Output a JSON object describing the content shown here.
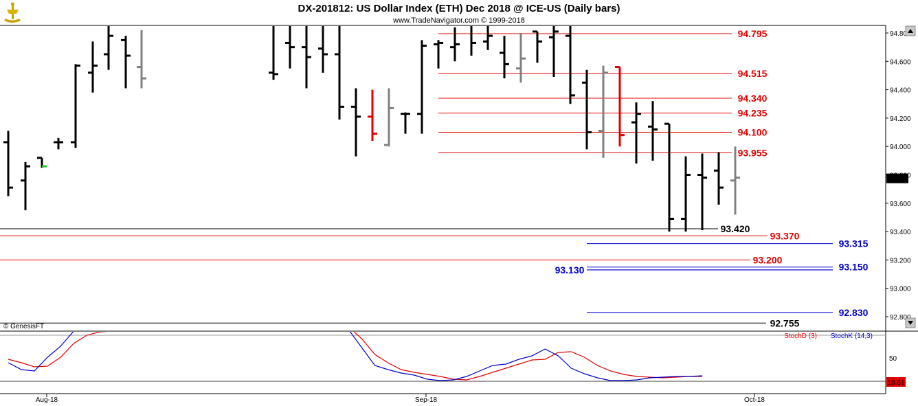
{
  "header": {
    "title": "DX-201812:  US Dollar Index (ETH) Dec 2018 @ ICE-US  (Daily bars)",
    "subtitle": "www.TradeNavigator.com © 1999-2018",
    "logo_icon": "ship-anchor-icon"
  },
  "watermark": "© GenesisFT",
  "colors": {
    "up_tick": "#22cc22",
    "gray_bar": "#808080",
    "red_bar": "#e00000",
    "red_level": "#e00000",
    "blue_level": "#0000cc",
    "black_level": "#000000",
    "stoch_d": "#e00000",
    "stoch_k": "#0000cc"
  },
  "chart_data": [
    {
      "type": "ohlc",
      "name": "price",
      "ylim": [
        92.7,
        94.95
      ],
      "yticks": [
        "94.800",
        "94.600",
        "94.400",
        "94.200",
        "94.000",
        "93.800",
        "93.600",
        "93.400",
        "93.200",
        "93.000",
        "92.800"
      ],
      "last_price": "93.775",
      "xlabels": [
        "Aug-18",
        "Sep-18",
        "Oct-18"
      ],
      "bars": [
        {
          "h": 94.11,
          "l": 93.65,
          "o": 94.03,
          "c": 93.71,
          "col": "black"
        },
        {
          "h": 93.89,
          "l": 93.55,
          "o": 93.76,
          "c": 93.86,
          "col": "black"
        },
        {
          "h": 93.92,
          "l": 93.85,
          "o": 93.92,
          "c": 93.86,
          "col": "green"
        },
        {
          "h": 94.06,
          "l": 93.98,
          "o": 94.03,
          "c": 94.03,
          "col": "black"
        },
        {
          "h": 94.58,
          "l": 93.99,
          "o": 94.03,
          "c": 94.57,
          "col": "black"
        },
        {
          "h": 94.74,
          "l": 94.38,
          "o": 94.52,
          "c": 94.57,
          "col": "black"
        },
        {
          "h": 94.94,
          "l": 94.54,
          "o": 94.65,
          "c": 94.78,
          "col": "black"
        },
        {
          "h": 94.78,
          "l": 94.41,
          "o": 94.75,
          "c": 94.64,
          "col": "black"
        },
        {
          "h": 94.82,
          "l": 94.41,
          "o": 94.56,
          "c": 94.48,
          "col": "gray"
        },
        {
          "h": 94.99,
          "l": 94.47,
          "o": 94.52,
          "c": 94.51,
          "col": "black"
        },
        {
          "h": 94.94,
          "l": 94.55,
          "o": 94.73,
          "c": 94.7,
          "col": "black"
        },
        {
          "h": 94.94,
          "l": 94.41,
          "o": 94.7,
          "c": 94.63,
          "col": "black"
        },
        {
          "h": 94.94,
          "l": 94.52,
          "o": 94.69,
          "c": 94.65,
          "col": "black"
        },
        {
          "h": 94.94,
          "l": 94.19,
          "o": 94.65,
          "c": 94.28,
          "col": "black"
        },
        {
          "h": 94.41,
          "l": 93.93,
          "o": 94.28,
          "c": 94.21,
          "col": "black"
        },
        {
          "h": 94.4,
          "l": 94.04,
          "o": 94.21,
          "c": 94.09,
          "col": "red"
        },
        {
          "h": 94.41,
          "l": 94.0,
          "o": 94.01,
          "c": 94.27,
          "col": "gray"
        },
        {
          "h": 94.24,
          "l": 94.09,
          "o": 94.23,
          "c": 94.23,
          "col": "black"
        },
        {
          "h": 94.75,
          "l": 94.09,
          "o": 94.23,
          "c": 94.71,
          "col": "black"
        },
        {
          "h": 94.75,
          "l": 94.55,
          "o": 94.72,
          "c": 94.73,
          "col": "black"
        },
        {
          "h": 94.84,
          "l": 94.6,
          "o": 94.7,
          "c": 94.72,
          "col": "black"
        },
        {
          "h": 94.93,
          "l": 94.64,
          "o": 94.86,
          "c": 94.73,
          "col": "black"
        },
        {
          "h": 94.93,
          "l": 94.68,
          "o": 94.74,
          "c": 94.78,
          "col": "black"
        },
        {
          "h": 94.78,
          "l": 94.48,
          "o": 94.66,
          "c": 94.58,
          "col": "black"
        },
        {
          "h": 94.8,
          "l": 94.45,
          "o": 94.55,
          "c": 94.62,
          "col": "gray"
        },
        {
          "h": 94.81,
          "l": 94.59,
          "o": 94.81,
          "c": 94.74,
          "col": "black"
        },
        {
          "h": 94.86,
          "l": 94.49,
          "o": 94.77,
          "c": 94.81,
          "col": "black"
        },
        {
          "h": 94.87,
          "l": 94.3,
          "o": 94.78,
          "c": 94.36,
          "col": "black"
        },
        {
          "h": 94.54,
          "l": 93.98,
          "o": 94.45,
          "c": 94.1,
          "col": "black"
        },
        {
          "h": 94.57,
          "l": 93.92,
          "o": 94.11,
          "c": 94.52,
          "col": "gray"
        },
        {
          "h": 94.56,
          "l": 94.0,
          "o": 94.56,
          "c": 94.08,
          "col": "red"
        },
        {
          "h": 94.31,
          "l": 93.88,
          "o": 94.17,
          "c": 94.23,
          "col": "black"
        },
        {
          "h": 94.32,
          "l": 93.9,
          "o": 94.14,
          "c": 94.12,
          "col": "black"
        },
        {
          "h": 94.16,
          "l": 93.4,
          "o": 94.16,
          "c": 93.49,
          "col": "black"
        },
        {
          "h": 93.93,
          "l": 93.4,
          "o": 93.49,
          "c": 93.8,
          "col": "black"
        },
        {
          "h": 93.95,
          "l": 93.41,
          "o": 93.8,
          "c": 93.78,
          "col": "black"
        },
        {
          "h": 93.96,
          "l": 93.59,
          "o": 93.83,
          "c": 93.71,
          "col": "black"
        },
        {
          "h": 94.0,
          "l": 93.52,
          "o": 93.76,
          "c": 93.78,
          "col": "gray"
        }
      ],
      "levels": [
        {
          "value": 94.795,
          "label": "94.795",
          "color": "red",
          "from": "mid"
        },
        {
          "value": 94.515,
          "label": "94.515",
          "color": "red",
          "from": "mid"
        },
        {
          "value": 94.34,
          "label": "94.340",
          "color": "red",
          "from": "mid"
        },
        {
          "value": 94.235,
          "label": "94.235",
          "color": "red",
          "from": "mid"
        },
        {
          "value": 94.1,
          "label": "94.100",
          "color": "red",
          "from": "mid"
        },
        {
          "value": 93.955,
          "label": "93.955",
          "color": "red",
          "from": "mid"
        },
        {
          "value": 93.42,
          "label": "93.420",
          "color": "black",
          "from": "start"
        },
        {
          "value": 93.37,
          "label": "93.370",
          "color": "red",
          "from": "start"
        },
        {
          "value": 93.315,
          "label": "93.315",
          "color": "blue",
          "from": "late"
        },
        {
          "value": 93.2,
          "label": "93.200",
          "color": "red",
          "from": "start"
        },
        {
          "value": 93.15,
          "label": "93.150",
          "color": "blue",
          "from": "late"
        },
        {
          "value": 93.13,
          "label": "93.130",
          "color": "blue",
          "from": "late"
        },
        {
          "value": 92.83,
          "label": "92.830",
          "color": "blue",
          "from": "late"
        },
        {
          "value": 92.755,
          "label": "92.755",
          "color": "black",
          "from": "start"
        }
      ]
    },
    {
      "type": "line",
      "name": "stochastic",
      "ylim": [
        0,
        100
      ],
      "yticks": [
        "50"
      ],
      "reference_line": 20,
      "last_value": "18.61",
      "legend": [
        "StochD (3)",
        "StochK (14,3)"
      ],
      "series": [
        {
          "name": "StochD (3)",
          "color": "red",
          "values": [
            45,
            40,
            34,
            35,
            48,
            68,
            80,
            85,
            86,
            88,
            92,
            100,
            100,
            100,
            100,
            100,
            100,
            100,
            100,
            100,
            100,
            100,
            100,
            100,
            100,
            100,
            92,
            75,
            52,
            40,
            30,
            26,
            23,
            20,
            16,
            15,
            20,
            26,
            32,
            38,
            44,
            45,
            55,
            56,
            48,
            36,
            28,
            23,
            20,
            19,
            18,
            19,
            20,
            20
          ]
        },
        {
          "name": "StochK (14,3)",
          "color": "blue",
          "values": [
            40,
            30,
            28,
            48,
            64,
            86,
            88,
            88,
            90,
            98,
            100,
            100,
            100,
            100,
            100,
            100,
            100,
            100,
            100,
            100,
            100,
            100,
            100,
            100,
            100,
            100,
            88,
            62,
            36,
            30,
            25,
            22,
            16,
            14,
            15,
            20,
            28,
            36,
            38,
            45,
            50,
            60,
            50,
            32,
            24,
            18,
            14,
            14,
            15,
            18,
            19,
            20,
            20,
            21
          ]
        }
      ]
    }
  ]
}
